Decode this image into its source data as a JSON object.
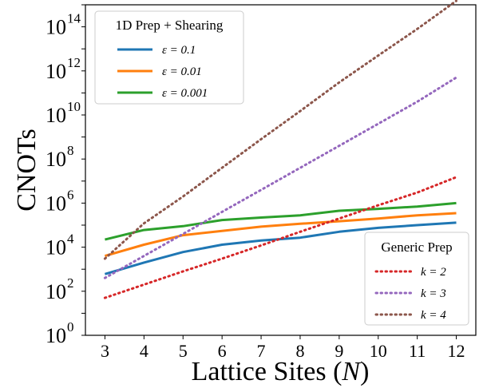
{
  "chart_data": {
    "type": "line",
    "title": "",
    "xlabel": "Lattice Sites (N)",
    "ylabel": "CNOTs",
    "x": [
      3,
      4,
      5,
      6,
      7,
      8,
      9,
      10,
      11,
      12
    ],
    "xticks": [
      "3",
      "4",
      "5",
      "6",
      "7",
      "8",
      "9",
      "10",
      "11",
      "12"
    ],
    "xlim": [
      2.5,
      12.5
    ],
    "yscale": "log",
    "ylim_exp": [
      0,
      15
    ],
    "yticks": [
      {
        "base": "10",
        "exp": "0"
      },
      {
        "base": "10",
        "exp": "2"
      },
      {
        "base": "10",
        "exp": "4"
      },
      {
        "base": "10",
        "exp": "6"
      },
      {
        "base": "10",
        "exp": "8"
      },
      {
        "base": "10",
        "exp": "10"
      },
      {
        "base": "10",
        "exp": "12"
      },
      {
        "base": "10",
        "exp": "14"
      }
    ],
    "grid": false,
    "legends": [
      {
        "title": "1D Prep + Shearing",
        "placement": "top-left",
        "entries": [
          "ε = 0.1",
          "ε = 0.01",
          "ε = 0.001"
        ]
      },
      {
        "title": "Generic Prep",
        "placement": "bottom-right",
        "entries": [
          "k = 2",
          "k = 3",
          "k = 4"
        ]
      }
    ],
    "series": [
      {
        "name": "ε = 0.1",
        "style": "solid",
        "color": "#1f77b4",
        "values": [
          600,
          2000,
          6000,
          13000,
          20000,
          27000,
          50000,
          75000,
          100000,
          130000
        ]
      },
      {
        "name": "ε = 0.01",
        "style": "solid",
        "color": "#ff7f0e",
        "values": [
          4000,
          13000,
          35000,
          55000,
          85000,
          115000,
          150000,
          200000,
          280000,
          350000
        ]
      },
      {
        "name": "ε = 0.001",
        "style": "solid",
        "color": "#2ca02c",
        "values": [
          22000,
          60000,
          90000,
          170000,
          220000,
          280000,
          450000,
          550000,
          700000,
          1000000
        ]
      },
      {
        "name": "k = 2",
        "style": "dotted",
        "color": "#d62728",
        "values": [
          50,
          200,
          800,
          3000,
          12000,
          50000,
          200000,
          800000,
          3000000,
          15000000
        ]
      },
      {
        "name": "k = 3",
        "style": "dotted",
        "color": "#9467bd",
        "values": [
          400,
          4000,
          40000,
          400000,
          4000000,
          40000000,
          400000000,
          4000000000,
          40000000000,
          500000000000
        ]
      },
      {
        "name": "k = 4",
        "style": "dotted",
        "color": "#8c564b",
        "values": [
          3000,
          120000,
          2000000,
          40000000,
          800000000,
          15000000000,
          300000000000,
          5000000000000,
          80000000000000,
          1500000000000000
        ]
      }
    ]
  }
}
